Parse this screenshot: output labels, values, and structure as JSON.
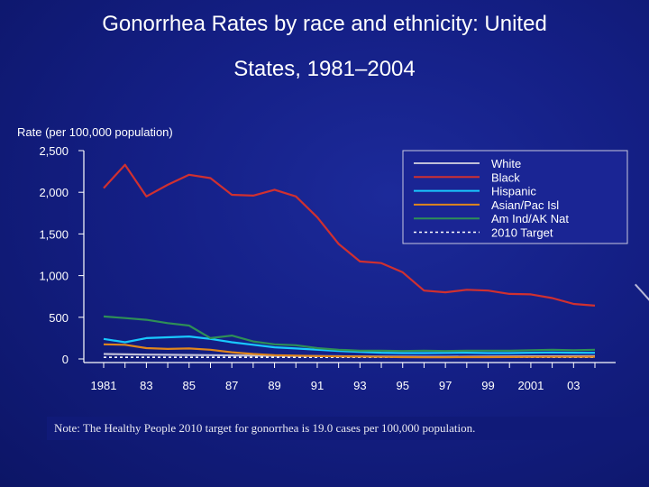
{
  "slide": {
    "title_line1": "Gonorrhea Rates by race and ethnicity: United",
    "title_line2": "States, 1981–2004",
    "note": "Note: The Healthy People 2010 target for gonorrhea is 19.0 cases per 100,000 population."
  },
  "chart_data": {
    "type": "line",
    "ylabel": "Rate (per 100,000 population)",
    "xlabel": "",
    "ylim": [
      0,
      2500
    ],
    "yticks": [
      0,
      500,
      1000,
      1500,
      2000,
      2500
    ],
    "ytick_labels": [
      "0",
      "500",
      "1,000",
      "1,500",
      "2,000",
      "2,500"
    ],
    "xlim": [
      1981,
      2004
    ],
    "xticks": [
      1981,
      1983,
      1985,
      1987,
      1989,
      1991,
      1993,
      1995,
      1997,
      1999,
      2001,
      2003
    ],
    "xtick_labels": [
      "1981",
      "83",
      "85",
      "87",
      "89",
      "91",
      "93",
      "95",
      "97",
      "99",
      "2001",
      "03"
    ],
    "x": [
      1981,
      1982,
      1983,
      1984,
      1985,
      1986,
      1987,
      1988,
      1989,
      1990,
      1991,
      1992,
      1993,
      1994,
      1995,
      1996,
      1997,
      1998,
      1999,
      2000,
      2001,
      2002,
      2003,
      2004
    ],
    "series": [
      {
        "name": "White",
        "color": "#bfbfd8",
        "dash": false,
        "values": [
          60,
          55,
          52,
          50,
          48,
          45,
          42,
          40,
          38,
          37,
          35,
          32,
          30,
          28,
          27,
          26,
          26,
          27,
          28,
          30,
          31,
          32,
          33,
          34
        ]
      },
      {
        "name": "Black",
        "color": "#d03030",
        "dash": false,
        "values": [
          2050,
          2330,
          1950,
          2090,
          2210,
          2170,
          1970,
          1960,
          2030,
          1950,
          1700,
          1380,
          1170,
          1150,
          1040,
          820,
          800,
          830,
          820,
          780,
          775,
          730,
          660,
          640
        ]
      },
      {
        "name": "Hispanic",
        "color": "#19c8ff",
        "dash": false,
        "values": [
          240,
          200,
          250,
          260,
          270,
          240,
          200,
          170,
          140,
          125,
          110,
          95,
          85,
          75,
          70,
          70,
          72,
          75,
          70,
          70,
          75,
          78,
          75,
          74
        ]
      },
      {
        "name": "Asian/Pac Isl",
        "color": "#e0861c",
        "dash": false,
        "values": [
          175,
          170,
          130,
          120,
          125,
          110,
          80,
          60,
          45,
          40,
          35,
          30,
          28,
          25,
          22,
          20,
          20,
          22,
          22,
          23,
          24,
          25,
          25,
          26
        ]
      },
      {
        "name": "Am Ind/AK Nat",
        "color": "#2e8f56",
        "dash": false,
        "values": [
          510,
          490,
          470,
          430,
          400,
          250,
          280,
          210,
          175,
          165,
          130,
          110,
          100,
          100,
          95,
          100,
          95,
          100,
          100,
          98,
          105,
          110,
          105,
          110
        ]
      },
      {
        "name": "2010 Target",
        "color": "#ffffff",
        "dash": true,
        "values": [
          19,
          19,
          19,
          19,
          19,
          19,
          19,
          19,
          19,
          19,
          19,
          19,
          19,
          19,
          19,
          19,
          19,
          19,
          19,
          19,
          19,
          19,
          19,
          19
        ]
      }
    ]
  }
}
